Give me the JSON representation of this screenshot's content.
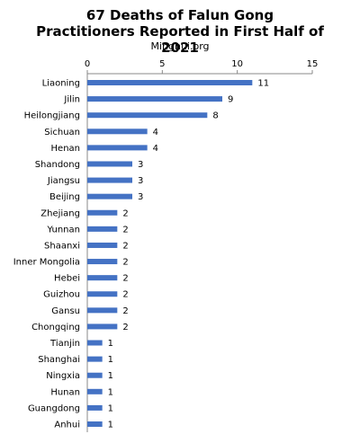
{
  "chart_data": {
    "type": "bar",
    "orientation": "horizontal",
    "title": "67 Deaths of Falun Gong Practitioners Reported in First Half of 2021",
    "subtitle": "Minghui.org",
    "categories": [
      "Liaoning",
      "Jilin",
      "Heilongjiang",
      "Sichuan",
      "Henan",
      "Shandong",
      "Jiangsu",
      "Beijing",
      "Zhejiang",
      "Yunnan",
      "Shaanxi",
      "Inner Mongolia",
      "Hebei",
      "Guizhou",
      "Gansu",
      "Chongqing",
      "Tianjin",
      "Shanghai",
      "Ningxia",
      "Hunan",
      "Guangdong",
      "Anhui"
    ],
    "values": [
      11,
      9,
      8,
      4,
      4,
      3,
      3,
      3,
      2,
      2,
      2,
      2,
      2,
      2,
      2,
      2,
      1,
      1,
      1,
      1,
      1,
      1
    ],
    "xlim": [
      0,
      15
    ],
    "xticks": [
      0,
      5,
      10,
      15
    ],
    "axis_position": "top",
    "grid": false,
    "legend": "none",
    "data_labels": true,
    "bar_color": "#4472C4"
  }
}
